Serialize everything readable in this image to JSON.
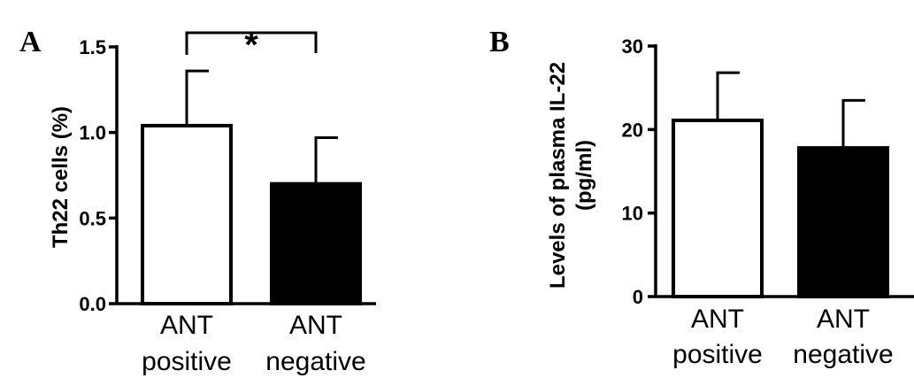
{
  "chart_data": [
    {
      "panel": "A",
      "type": "bar",
      "categories": [
        [
          "ANT",
          "positive"
        ],
        [
          "ANT",
          "negative"
        ]
      ],
      "values": [
        1.04,
        0.7
      ],
      "errors": [
        0.32,
        0.27
      ],
      "bar_colors": [
        "#ffffff",
        "#000000"
      ],
      "ylabel": "Th22 cells (%)",
      "ylim": [
        0,
        1.5
      ],
      "yticks": [
        "0.0",
        "0.5",
        "1.0",
        "1.5"
      ],
      "ytick_values": [
        0,
        0.5,
        1.0,
        1.5
      ],
      "significance": "*",
      "grid": false
    },
    {
      "panel": "B",
      "type": "bar",
      "categories": [
        [
          "ANT",
          "positive"
        ],
        [
          "ANT",
          "negative"
        ]
      ],
      "values": [
        21.1,
        17.8
      ],
      "errors": [
        5.7,
        5.7
      ],
      "bar_colors": [
        "#ffffff",
        "#000000"
      ],
      "ylabel": [
        "Levels of plasma IL-22",
        "(pg/ml)"
      ],
      "ylim": [
        0,
        30
      ],
      "yticks": [
        "0",
        "10",
        "20",
        "30"
      ],
      "ytick_values": [
        0,
        10,
        20,
        30
      ],
      "grid": false
    }
  ]
}
